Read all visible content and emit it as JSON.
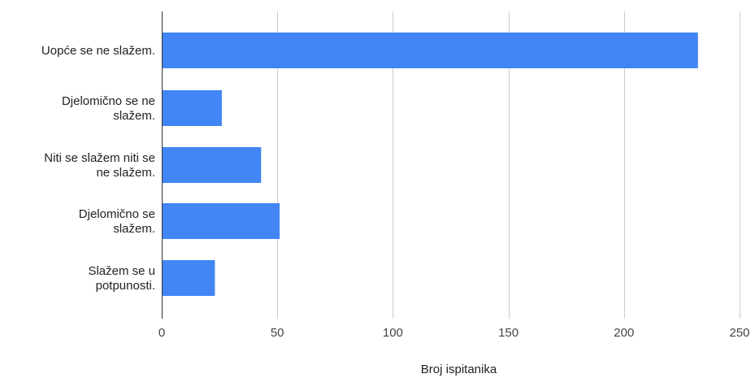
{
  "chart_data": {
    "type": "bar",
    "orientation": "horizontal",
    "categories": [
      [
        "Uopće se ne slažem."
      ],
      [
        "Djelomično se ne",
        "slažem."
      ],
      [
        "Niti se slažem niti se",
        "ne slažem."
      ],
      [
        "Djelomično se",
        "slažem."
      ],
      [
        "Slažem se u",
        "potpunosti."
      ]
    ],
    "values": [
      232,
      26,
      43,
      51,
      23
    ],
    "xlabel": "Broj ispitanika",
    "xlim": [
      0,
      250
    ],
    "xticks": [
      0,
      50,
      100,
      150,
      200,
      250
    ],
    "grid": "vertical",
    "legend": "none",
    "bar_color": "#4285f4",
    "grid_color": "#cccccc",
    "axis_color": "#333333"
  }
}
